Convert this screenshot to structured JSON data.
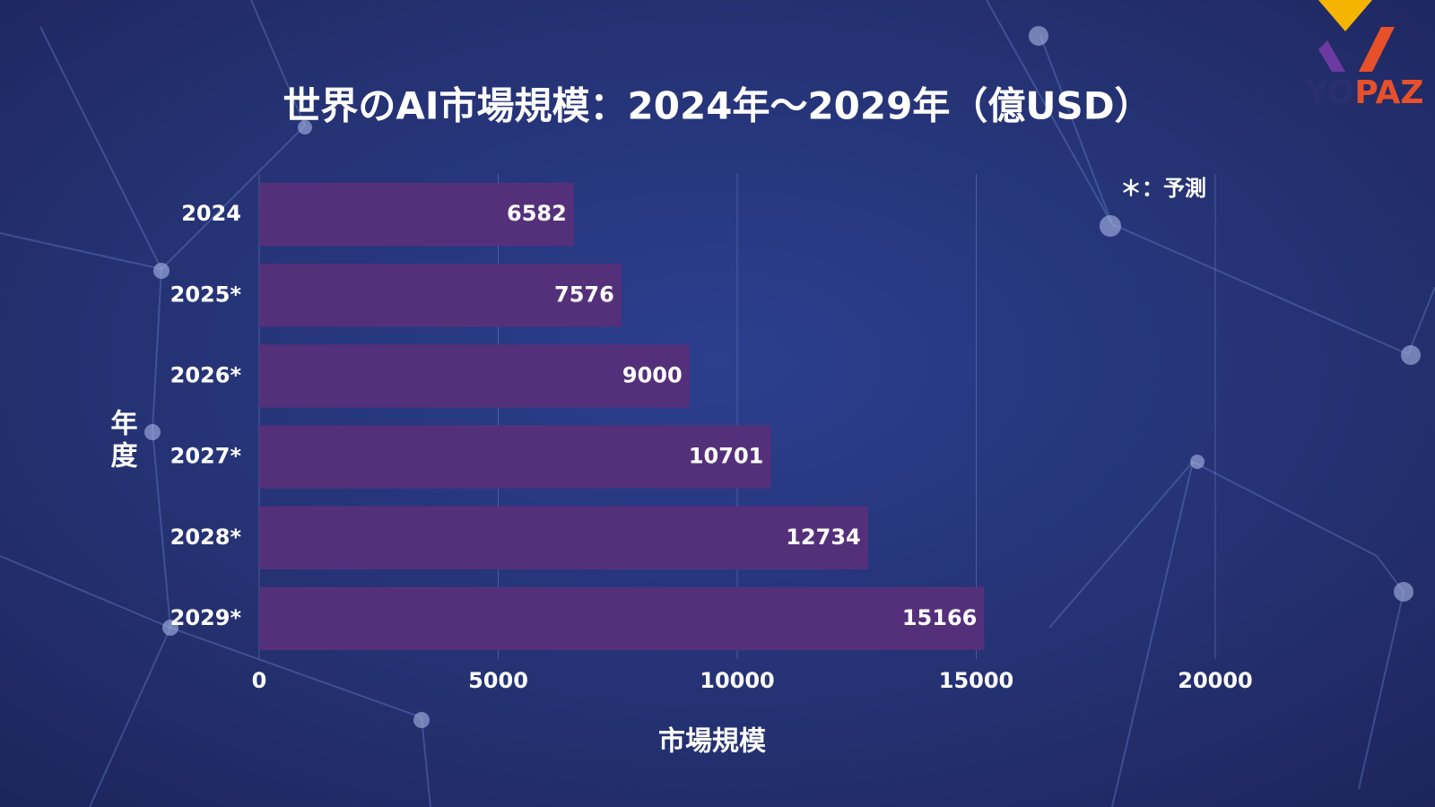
{
  "chart_data": {
    "type": "barh",
    "title": "世界のAI市場規模：2024年～2029年（億USD）",
    "categories": [
      "2024",
      "2025*",
      "2026*",
      "2027*",
      "2028*",
      "2029*"
    ],
    "values": [
      6582,
      7576,
      9000,
      10701,
      12734,
      15166
    ],
    "color": "#55307a",
    "xlim": [
      0,
      20000
    ],
    "xticks": [
      0,
      5000,
      10000,
      15000,
      20000
    ],
    "grid": true,
    "xlabel": "市場規模",
    "ylabel": "年度",
    "annotation": "＊：予測",
    "logo": "YOPAZ"
  }
}
